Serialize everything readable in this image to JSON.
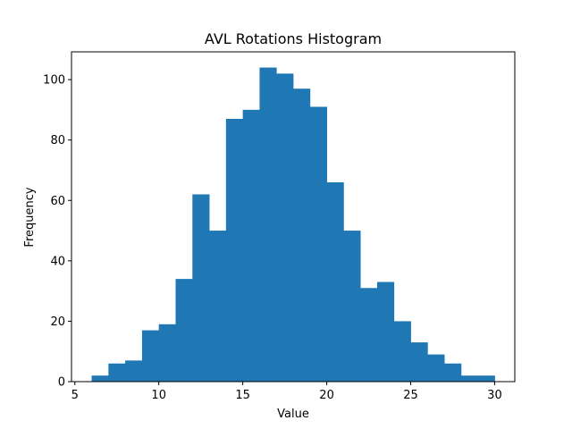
{
  "chart_data": {
    "type": "bar",
    "title": "AVL Rotations Histogram",
    "xlabel": "Value",
    "ylabel": "Frequency",
    "bar_color": "#1f77b4",
    "bin_edges": [
      6,
      7,
      8,
      9,
      10,
      11,
      12,
      13,
      14,
      15,
      16,
      17,
      18,
      19,
      20,
      21,
      22,
      23,
      24,
      25,
      26,
      27,
      28,
      29,
      30
    ],
    "values": [
      2,
      6,
      7,
      17,
      19,
      34,
      62,
      50,
      87,
      90,
      104,
      102,
      97,
      91,
      66,
      50,
      31,
      33,
      20,
      13,
      9,
      6,
      2,
      2
    ],
    "xlim": [
      4.8,
      31.2
    ],
    "ylim": [
      0,
      109.2
    ],
    "xticks": [
      5,
      10,
      15,
      20,
      25,
      30
    ],
    "yticks": [
      0,
      20,
      40,
      60,
      80,
      100
    ],
    "grid": false,
    "legend": false
  }
}
